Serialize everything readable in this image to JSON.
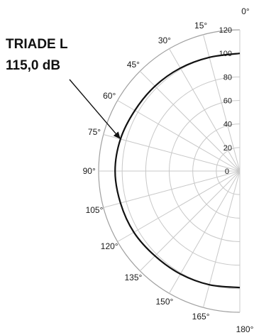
{
  "chart_data": {
    "type": "polar",
    "angular_ticks": [
      "0°",
      "15°",
      "30°",
      "45°",
      "60°",
      "75°",
      "90°",
      "105°",
      "120°",
      "135°",
      "150°",
      "165°",
      "180°"
    ],
    "angular_values": [
      0,
      15,
      30,
      45,
      60,
      75,
      90,
      105,
      120,
      135,
      150,
      165,
      180
    ],
    "radial_ticks": [
      "0",
      "20",
      "40",
      "60",
      "80",
      "100",
      "120"
    ],
    "radial_values": [
      0,
      20,
      40,
      60,
      80,
      100,
      120
    ],
    "rlim": [
      0,
      120
    ],
    "angle_range": [
      0,
      180
    ],
    "grid": true,
    "annotation": {
      "line1": "TRIADE L",
      "line2": "115,0 dB",
      "points_to_angle": 75
    },
    "series": [
      {
        "color": "#111111",
        "theta": [
          0,
          15,
          30,
          45,
          60,
          75,
          90,
          105,
          120,
          135,
          150,
          165,
          180
        ],
        "r": [
          100,
          100,
          101,
          102,
          103,
          105,
          106,
          105,
          104,
          102,
          101,
          100,
          99
        ]
      }
    ]
  }
}
